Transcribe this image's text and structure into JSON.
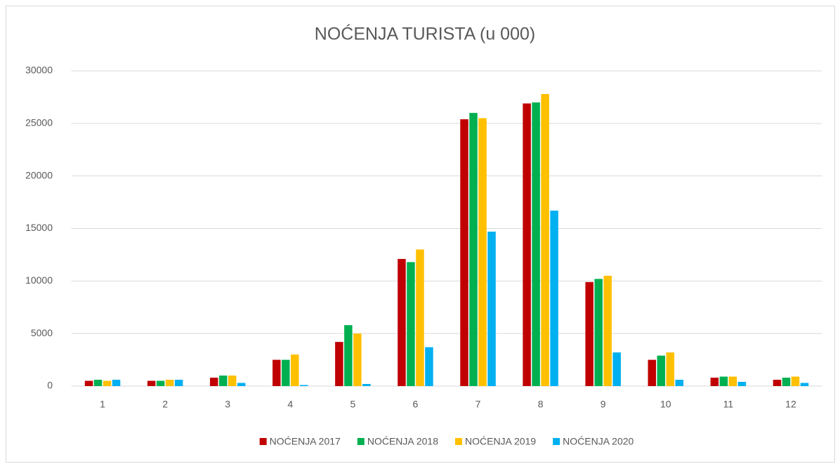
{
  "chart_data": {
    "type": "bar",
    "title": "NOĆENJA TURISTA (u 000)",
    "categories": [
      "1",
      "2",
      "3",
      "4",
      "5",
      "6",
      "7",
      "8",
      "9",
      "10",
      "11",
      "12"
    ],
    "series": [
      {
        "name": "NOĆENJA 2017",
        "color": "#c00000",
        "values": [
          500,
          500,
          800,
          2500,
          4200,
          12100,
          25400,
          26900,
          9900,
          2500,
          800,
          600
        ]
      },
      {
        "name": "NOĆENJA 2018",
        "color": "#00b050",
        "values": [
          600,
          500,
          1000,
          2500,
          5800,
          11800,
          26000,
          27000,
          10200,
          2900,
          900,
          800
        ]
      },
      {
        "name": "NOĆENJA 2019",
        "color": "#ffc000",
        "values": [
          500,
          600,
          1000,
          3000,
          5000,
          13000,
          25500,
          27800,
          10500,
          3200,
          900,
          900
        ]
      },
      {
        "name": "NOĆENJA 2020",
        "color": "#00b0f0",
        "values": [
          600,
          600,
          300,
          100,
          200,
          3700,
          14700,
          16700,
          3200,
          600,
          400,
          300
        ]
      }
    ],
    "ylim": [
      0,
      30000
    ],
    "yticks": [
      0,
      5000,
      10000,
      15000,
      20000,
      25000,
      30000
    ],
    "grid": true,
    "legend": "bottom"
  }
}
